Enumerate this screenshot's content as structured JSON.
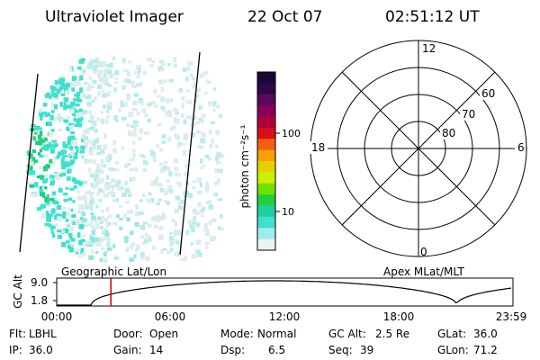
{
  "header": {
    "instrument": "Ultraviolet Imager",
    "date": "22 Oct 07",
    "time": "02:51:12 UT"
  },
  "colorbar": {
    "unit_label": "photon cm⁻²s⁻¹",
    "ticks": [
      "100",
      "10"
    ],
    "colors": [
      "#1a0838",
      "#2a0a4a",
      "#5a0a58",
      "#88005a",
      "#b0003a",
      "#d8101a",
      "#f06010",
      "#f4a000",
      "#e8d000",
      "#c8f000",
      "#70e000",
      "#20d040",
      "#20d0a0",
      "#40e0d0",
      "#a0ece8",
      "#e8f4f4"
    ]
  },
  "polar_plot": {
    "mlt_labels": [
      "12",
      "18",
      "6",
      "0"
    ],
    "lat_labels": [
      "60",
      "70",
      "80"
    ],
    "coordinate_label": "Apex MLat/MLT"
  },
  "altitude_plot": {
    "title_left": "Geographic Lat/Lon",
    "title_right": "Apex MLat/MLT",
    "y_label": "GC Alt",
    "y_ticks": [
      "9.0",
      "1.8"
    ],
    "x_ticks": [
      "00:00",
      "06:00",
      "12:00",
      "18:00",
      "23:59"
    ],
    "marker_time": "02:51",
    "marker_color": "#cc0000"
  },
  "footer": {
    "row1": [
      {
        "label": "Flt:",
        "value": "LBHL"
      },
      {
        "label": "Door:",
        "value": "Open"
      },
      {
        "label": "Mode:",
        "value": "Normal"
      },
      {
        "label": "GC Alt:",
        "value": "2.5 Re"
      },
      {
        "label": "GLat:",
        "value": "36.0"
      }
    ],
    "row2": [
      {
        "label": "IP:",
        "value": "36.0"
      },
      {
        "label": "Gain:",
        "value": "14"
      },
      {
        "label": "Dsp:",
        "value": "6.5"
      },
      {
        "label": "Seq:",
        "value": "39"
      },
      {
        "label": "GLon:",
        "value": "71.2"
      }
    ]
  }
}
